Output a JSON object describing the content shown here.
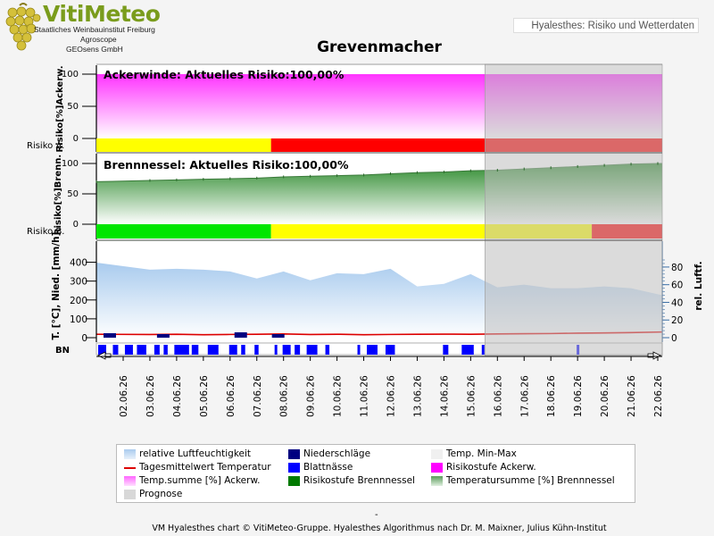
{
  "header": {
    "logo_title": "VitiMeteo",
    "logo_lines": [
      "Staatliches Weinbauinstitut Freiburg",
      "Agroscope",
      "GEOsens GmbH"
    ],
    "app_title": "Hyalesthes: Risiko und Wetterdaten"
  },
  "chart_title": "Grevenmacher",
  "footer": {
    "dash": "-",
    "credit": "VM Hyalesthes chart © VitiMeteo-Gruppe. Hyalesthes Algorithmus nach Dr. M. Maixner, Julius Kühn-Institut"
  },
  "colors": {
    "ackerwinde": "#ff33ff",
    "brennnessel": "#2e8b2e",
    "humidity": "#a9cbee",
    "temperature": "#dd0000",
    "precip": "#000080",
    "leafwet": "#0000ff",
    "risk_green": "#00e600",
    "risk_yellow": "#ffff00",
    "risk_red": "#ff0000",
    "prognose": "#d8d8d8"
  },
  "chart_data": {
    "type": "area",
    "dates": [
      "02.06.26",
      "03.06.26",
      "04.06.26",
      "05.06.26",
      "06.06.26",
      "07.06.26",
      "08.06.26",
      "09.06.26",
      "10.06.26",
      "11.06.26",
      "12.06.26",
      "13.06.26",
      "14.06.26",
      "15.06.26",
      "16.06.26",
      "17.06.26",
      "18.06.26",
      "19.06.26",
      "20.06.26",
      "21.06.26",
      "22.06.26"
    ],
    "prognose_start": "16.06.26",
    "panels": [
      {
        "id": "ackerwinde",
        "ylabel": "Risiko[%]Ackerw.",
        "ylim": [
          0,
          100
        ],
        "yticks": [
          0,
          50,
          100
        ],
        "label": "Ackerwinde: Aktuelles Risiko:100,00%",
        "risk_row_label": "Risiko A.",
        "temperature_sum_percent": [
          100,
          100,
          100,
          100,
          100,
          100,
          100,
          100,
          100,
          100,
          100,
          100,
          100,
          100,
          100,
          100,
          100,
          100,
          100,
          100,
          100
        ],
        "risk_levels": [
          {
            "from": "01.06.26",
            "to": "08.06.26",
            "level": "yellow"
          },
          {
            "from": "08.06.26",
            "to": "22.06.26",
            "level": "red"
          }
        ]
      },
      {
        "id": "brennnessel",
        "ylabel": "Risiko[%]Brenn.",
        "ylim": [
          0,
          100
        ],
        "yticks": [
          0,
          50,
          100
        ],
        "label": "Brennnessel: Aktuelles Risiko:100,00%",
        "risk_row_label": "Risiko B.",
        "temperature_sum_percent": [
          70,
          72,
          73,
          74,
          75,
          76,
          78,
          79,
          80,
          81,
          83,
          85,
          86,
          88,
          89,
          91,
          93,
          95,
          97,
          99,
          100
        ],
        "risk_levels": [
          {
            "from": "01.06.26",
            "to": "08.06.26",
            "level": "green"
          },
          {
            "from": "08.06.26",
            "to": "20.06.26",
            "level": "yellow"
          },
          {
            "from": "20.06.26",
            "to": "22.06.26",
            "level": "red"
          }
        ]
      },
      {
        "id": "weather",
        "ylabel_left": "T. [°C], Nied. [mm/h]",
        "ylabel_right": "rel. Luftf.",
        "ylim_left": [
          0,
          450
        ],
        "yticks_left": [
          0,
          100,
          200,
          300,
          400
        ],
        "ylim_right": [
          0,
          95
        ],
        "yticks_right": [
          0,
          20,
          40,
          60,
          80
        ],
        "relative_humidity": [
          85,
          77,
          78,
          77,
          75,
          67,
          75,
          65,
          73,
          72,
          78,
          58,
          61,
          72,
          57,
          60,
          56,
          56,
          58,
          56,
          48
        ],
        "temperature_mean": [
          3.5,
          3.2,
          3.5,
          3.0,
          3.3,
          3.5,
          3.8,
          3.2,
          3.5,
          3.0,
          3.3,
          3.5,
          3.6,
          3.5,
          3.8,
          4.0,
          4.2,
          4.6,
          4.8,
          5.2,
          5.8
        ],
        "leaf_wetness_row_label": "BN"
      }
    ]
  },
  "legend": [
    {
      "name": "relative Luftfeuchtigkeit",
      "swatch": "humidity"
    },
    {
      "name": "Niederschläge",
      "swatch": "precip"
    },
    {
      "name": "Temp. Min-Max",
      "swatch": "minmax"
    },
    {
      "name": "Tagesmittelwert Temperatur",
      "swatch": "line"
    },
    {
      "name": "Blattnässe",
      "swatch": "leafwet"
    },
    {
      "name": "Risikostufe Ackerw.",
      "swatch": "magenta"
    },
    {
      "name": "Temp.summe [%] Ackerw.",
      "swatch": "magentagrad"
    },
    {
      "name": "Risikostufe Brennnessel",
      "swatch": "green"
    },
    {
      "name": "Temperatursumme [%] Brennnessel",
      "swatch": "greengrad"
    },
    {
      "name": "Prognose",
      "swatch": "prognose"
    }
  ]
}
